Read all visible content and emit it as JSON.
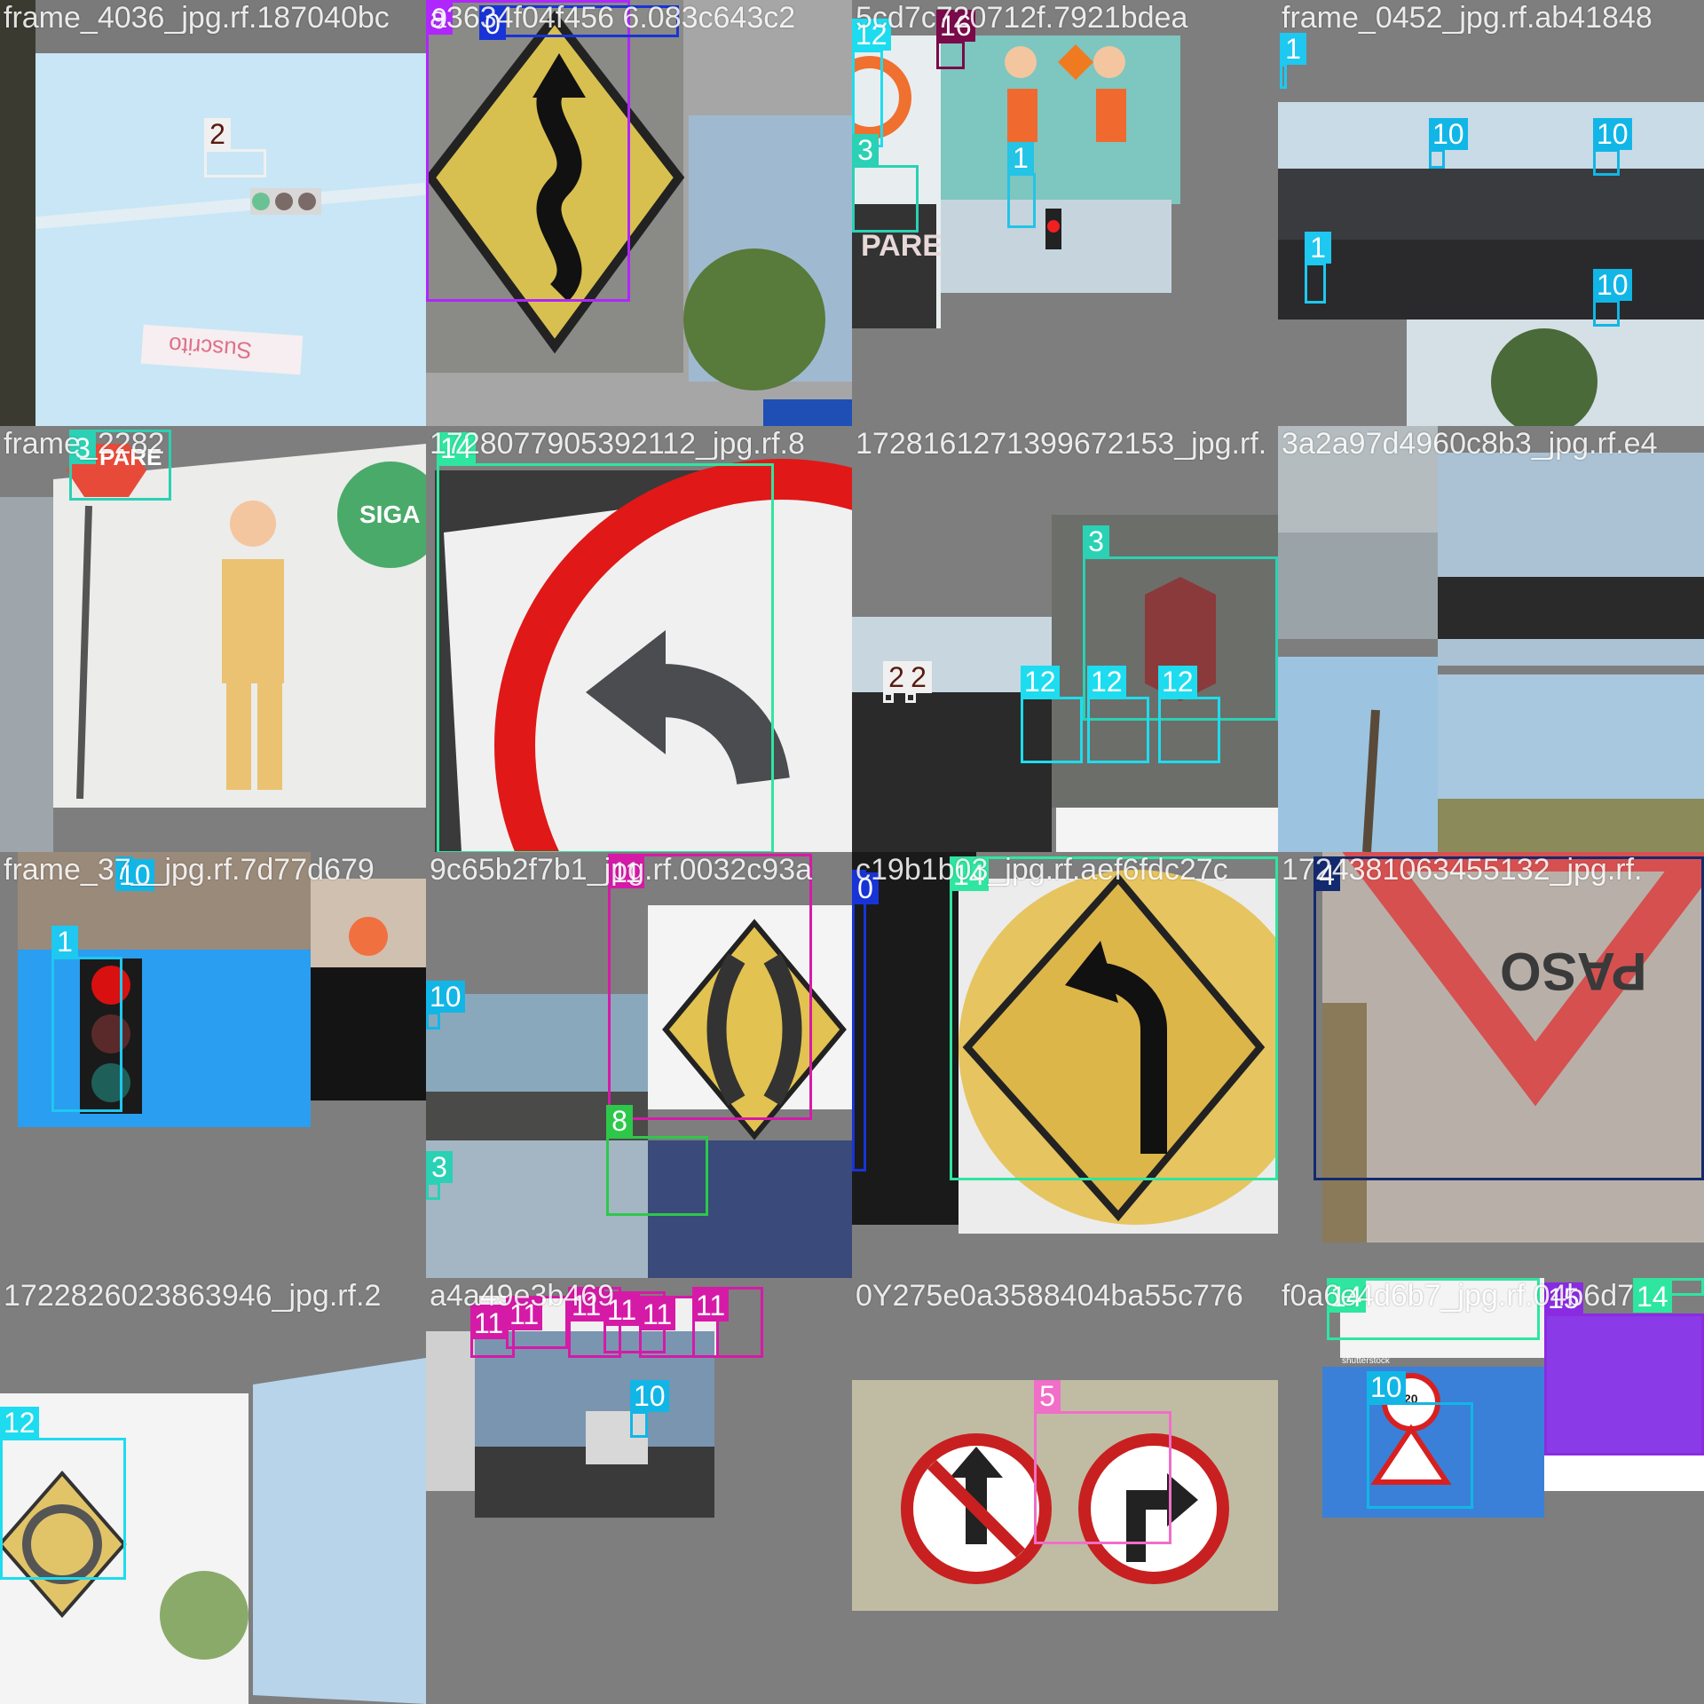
{
  "tiles": [
    {
      "id": "t0",
      "filename": "frame_4036_jpg.rf.187040bc"
    },
    {
      "id": "t1",
      "filename": "a3634f04f456 6.083c643c2"
    },
    {
      "id": "t2",
      "filename": "5cd7c720712f.7921bdea"
    },
    {
      "id": "t3",
      "filename": "frame_0452_jpg.rf.ab41848"
    },
    {
      "id": "t4",
      "filename": "frame_2282"
    },
    {
      "id": "t5",
      "filename": "1728077905392112_jpg.rf.8"
    },
    {
      "id": "t6",
      "filename": "1728161271399672153_jpg.rf."
    },
    {
      "id": "t7",
      "filename": "3a2a97d4960c8b3_jpg.rf.e4"
    },
    {
      "id": "t8",
      "filename": "frame_37__jpg.rf.7d77d679"
    },
    {
      "id": "t9",
      "filename": "9c65b2f7b1_jpg.rf.0032c93a"
    },
    {
      "id": "t10",
      "filename": "c19b1b03_jpg.rf.aef6fdc27c"
    },
    {
      "id": "t11",
      "filename": "1724381063455132_jpg.rf."
    },
    {
      "id": "t12",
      "filename": "1722826023863946_jpg.rf.2"
    },
    {
      "id": "t13",
      "filename": "a4a49e3b469"
    },
    {
      "id": "t14",
      "filename": "0Y275e0a3588404ba55c776"
    },
    {
      "id": "t15",
      "filename": "f0a6e4d6b7_jpg.rf.04b6d7"
    }
  ],
  "boxes": [
    {
      "tile": "t0",
      "label": "2",
      "color": "#f0f0f0",
      "style": "dark"
    },
    {
      "tile": "t1",
      "label": "9",
      "color": "#b026ff"
    },
    {
      "tile": "t1",
      "label": "0",
      "color": "#1834d6"
    },
    {
      "tile": "t2",
      "label": "12",
      "color": "#1edcef"
    },
    {
      "tile": "t2",
      "label": "16",
      "color": "#7a0a4a"
    },
    {
      "tile": "t2",
      "label": "3",
      "color": "#2ad1b4"
    },
    {
      "tile": "t2",
      "label": "1",
      "color": "#23c4e6"
    },
    {
      "tile": "t3",
      "label": "1",
      "color": "#1ec8f0"
    },
    {
      "tile": "t3",
      "label": "10",
      "color": "#12b6e6"
    },
    {
      "tile": "t3",
      "label": "10",
      "color": "#12b6e6"
    },
    {
      "tile": "t3",
      "label": "1",
      "color": "#1ec8f0"
    },
    {
      "tile": "t3",
      "label": "10",
      "color": "#12b6e6"
    },
    {
      "tile": "t4",
      "label": "3",
      "color": "#2ad1b4"
    },
    {
      "tile": "t5",
      "label": "14",
      "color": "#2ee6a0"
    },
    {
      "tile": "t6",
      "label": "3",
      "color": "#2ad1b4"
    },
    {
      "tile": "t6",
      "label": "2",
      "color": "#f0f0f0",
      "style": "dark"
    },
    {
      "tile": "t6",
      "label": "2",
      "color": "#f0f0f0",
      "style": "dark"
    },
    {
      "tile": "t6",
      "label": "12",
      "color": "#1edcef"
    },
    {
      "tile": "t6",
      "label": "12",
      "color": "#1edcef"
    },
    {
      "tile": "t6",
      "label": "12",
      "color": "#1edcef"
    },
    {
      "tile": "t8",
      "label": "10",
      "color": "#12b6e6"
    },
    {
      "tile": "t8",
      "label": "1",
      "color": "#1ec8f0"
    },
    {
      "tile": "t9",
      "label": "11",
      "color": "#d61aa8"
    },
    {
      "tile": "t9",
      "label": "10",
      "color": "#12b6e6"
    },
    {
      "tile": "t9",
      "label": "3",
      "color": "#2ad1b4"
    },
    {
      "tile": "t9",
      "label": "8",
      "color": "#2dc84a"
    },
    {
      "tile": "t10",
      "label": "0",
      "color": "#1834d6"
    },
    {
      "tile": "t10",
      "label": "14",
      "color": "#2ee6a0"
    },
    {
      "tile": "t11",
      "label": "4",
      "color": "#142a6e"
    },
    {
      "tile": "t12",
      "label": "12",
      "color": "#1edcef"
    },
    {
      "tile": "t13",
      "label": "11",
      "color": "#d61aa8"
    },
    {
      "tile": "t13",
      "label": "11",
      "color": "#d61aa8"
    },
    {
      "tile": "t13",
      "label": "11",
      "color": "#d61aa8"
    },
    {
      "tile": "t13",
      "label": "11",
      "color": "#d61aa8"
    },
    {
      "tile": "t13",
      "label": "11",
      "color": "#d61aa8"
    },
    {
      "tile": "t13",
      "label": "11",
      "color": "#d61aa8"
    },
    {
      "tile": "t13",
      "label": "10",
      "color": "#12b6e6"
    },
    {
      "tile": "t14",
      "label": "5",
      "color": "#f06ec8"
    },
    {
      "tile": "t15",
      "label": "14",
      "color": "#2ee6a0"
    },
    {
      "tile": "t15",
      "label": "14",
      "color": "#2ee6a0"
    },
    {
      "tile": "t15",
      "label": "10",
      "color": "#12b6e6"
    },
    {
      "tile": "t15",
      "label": "15",
      "color": "#8a2be2"
    }
  ],
  "sign_text": {
    "pare": "PARE",
    "siga": "SIGA",
    "cede_paso": "PASO",
    "suscrito": "Suscrito",
    "shutterstock": "shutterstock",
    "speed": "20"
  }
}
